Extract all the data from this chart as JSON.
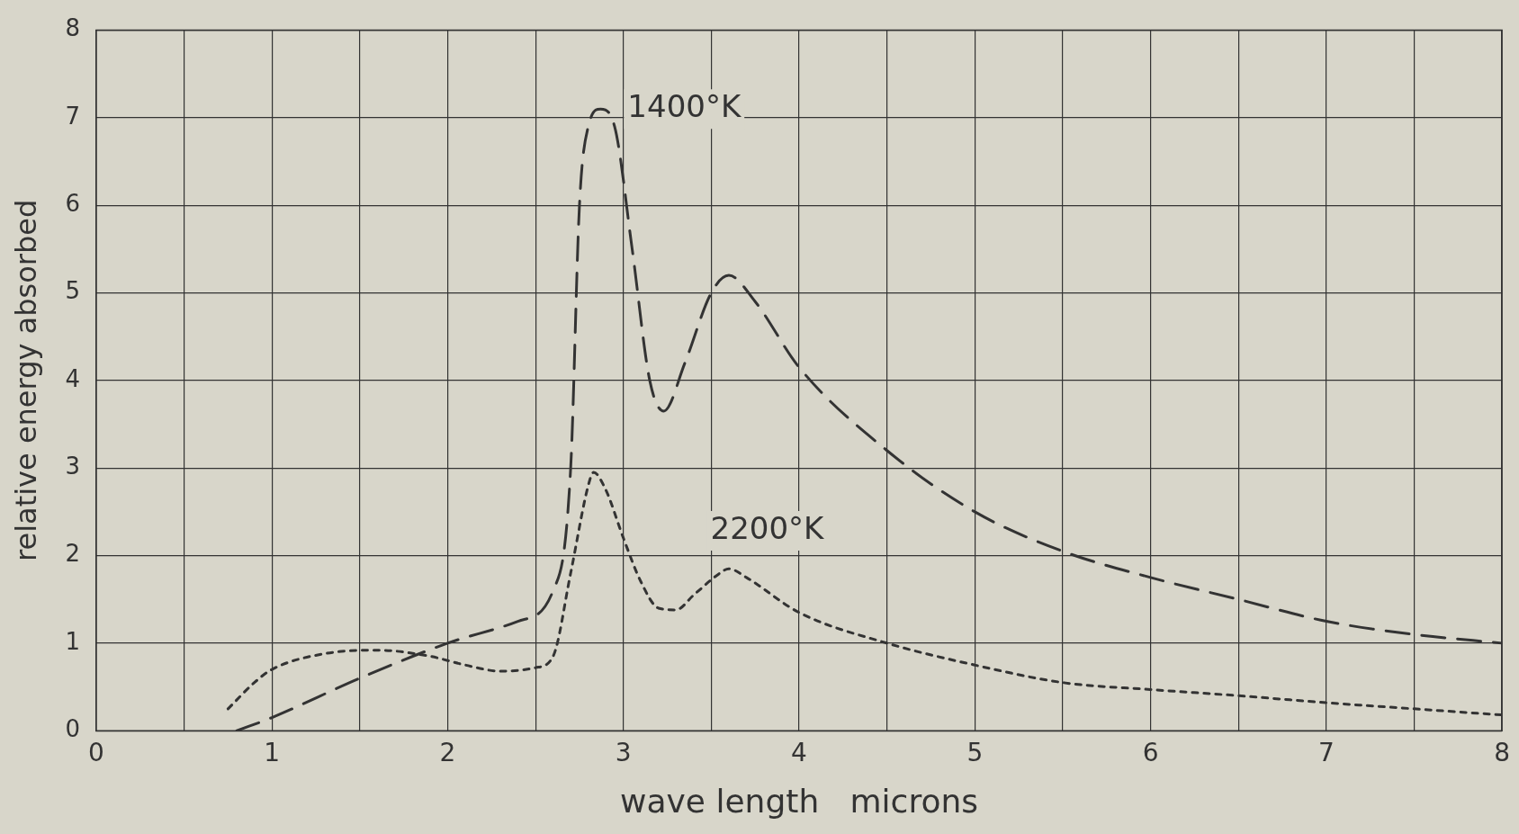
{
  "chart_data": {
    "type": "line",
    "xlabel": "wave length   microns",
    "ylabel": "relative energy absorbed",
    "xlim": [
      0,
      8
    ],
    "ylim": [
      0,
      8
    ],
    "xticks": [
      0,
      {
        "value": 0.5,
        "label": null
      },
      1,
      {
        "value": 1.5,
        "label": null
      },
      2,
      {
        "value": 2.5,
        "label": null
      },
      3,
      {
        "value": 3.5,
        "label": null
      },
      4,
      {
        "value": 4.5,
        "label": null
      },
      5,
      {
        "value": 5.5,
        "label": null
      },
      6,
      {
        "value": 6.5,
        "label": null
      },
      7,
      {
        "value": 7.5,
        "label": null
      },
      8
    ],
    "yticks": [
      0,
      1,
      2,
      3,
      4,
      5,
      6,
      7,
      8
    ],
    "grid": true,
    "legend": false,
    "marker": "none",
    "series": [
      {
        "name": "1400°K",
        "color": "#333333",
        "line_style": "dashed",
        "x": [
          0.8,
          1.0,
          1.5,
          2.0,
          2.4,
          2.6,
          2.7,
          2.75,
          2.8,
          2.87,
          2.95,
          3.05,
          3.15,
          3.23,
          3.35,
          3.5,
          3.6,
          3.75,
          4.0,
          4.5,
          5.0,
          5.5,
          6.0,
          6.5,
          7.0,
          7.5,
          8.0
        ],
        "values": [
          0,
          0.15,
          0.6,
          1.0,
          1.25,
          1.6,
          3.0,
          6.0,
          6.9,
          7.1,
          6.9,
          5.5,
          4.0,
          3.65,
          4.2,
          5.0,
          5.2,
          4.9,
          4.15,
          3.2,
          2.5,
          2.05,
          1.75,
          1.5,
          1.25,
          1.1,
          1.0
        ]
      },
      {
        "name": "2200°K",
        "color": "#333333",
        "line_style": "dotted",
        "x": [
          0.75,
          0.9,
          1.0,
          1.3,
          1.6,
          1.9,
          2.1,
          2.3,
          2.5,
          2.6,
          2.7,
          2.8,
          2.83,
          2.9,
          3.0,
          3.1,
          3.2,
          3.3,
          3.4,
          3.55,
          3.6,
          3.7,
          4.0,
          4.5,
          5.0,
          5.5,
          6.0,
          6.5,
          7.0,
          7.5,
          8.0
        ],
        "values": [
          0.25,
          0.55,
          0.7,
          0.88,
          0.92,
          0.85,
          0.75,
          0.68,
          0.72,
          0.85,
          1.8,
          2.8,
          2.95,
          2.75,
          2.2,
          1.7,
          1.4,
          1.38,
          1.55,
          1.8,
          1.85,
          1.75,
          1.35,
          1.0,
          0.75,
          0.55,
          0.47,
          0.4,
          0.32,
          0.25,
          0.18
        ]
      }
    ]
  }
}
